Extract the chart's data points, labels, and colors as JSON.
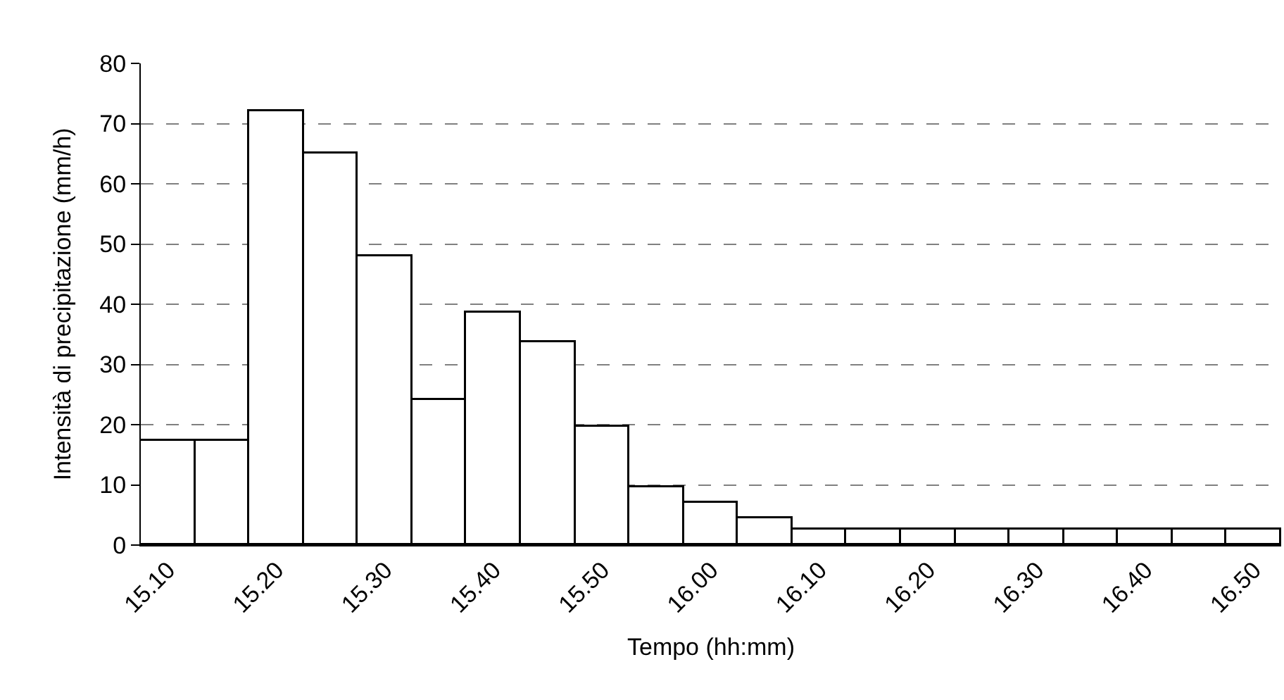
{
  "chart_data": {
    "type": "bar",
    "xlabel": "Tempo (hh:mm)",
    "ylabel": "Intensità di precipitazione (mm/h)",
    "categories": [
      "15.10",
      null,
      "15.20",
      null,
      "15.30",
      null,
      "15.40",
      null,
      "15.50",
      null,
      "16.00",
      null,
      "16.10",
      null,
      "16.20",
      null,
      "16.30",
      null,
      "16.40",
      null,
      "16.50"
    ],
    "values": [
      17.4,
      17.4,
      72,
      65,
      48,
      24,
      38.5,
      33.8,
      19.6,
      9.7,
      7,
      4.4,
      2.5,
      2.5,
      2.5,
      2.5,
      2.5,
      2.5,
      2.5,
      2.5,
      2.5
    ],
    "color": "#ffffff",
    "ylim": [
      0,
      80
    ],
    "yticks": [
      0,
      10,
      20,
      30,
      40,
      50,
      60,
      70,
      80
    ],
    "grid": "y"
  }
}
